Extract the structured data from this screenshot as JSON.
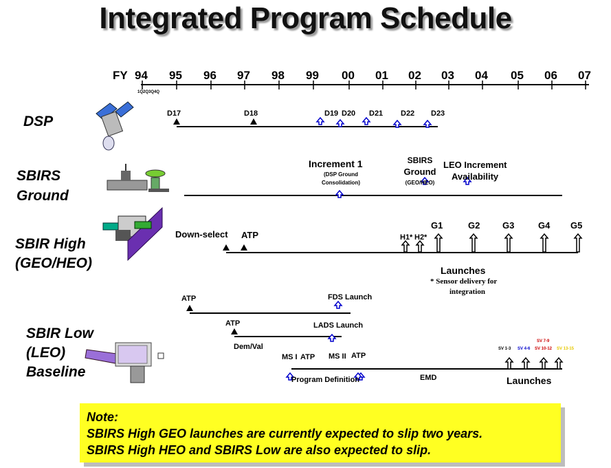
{
  "title": "Integrated Program Schedule",
  "fy_label": "FY",
  "years": [
    "94",
    "95",
    "96",
    "97",
    "98",
    "99",
    "00",
    "01",
    "02",
    "03",
    "04",
    "05",
    "06",
    "07"
  ],
  "quarters": "1Q2Q3Q4Q",
  "rows": {
    "dsp": "DSP",
    "ground_1": "SBIRS",
    "ground_2": "Ground",
    "high_1": "SBIR High",
    "high_2": "(GEO/HEO)",
    "low_1": "SBIR Low",
    "low_2": "(LEO)",
    "low_3": "Baseline"
  },
  "dsp_events": [
    "D17",
    "D18",
    "D19",
    "D20",
    "D21",
    "D22",
    "D23"
  ],
  "ground": {
    "inc1": "Increment  1",
    "inc1_sub1": "(DSP Ground",
    "inc1_sub2": "Consolidation)",
    "sbirs_ground_1": "SBIRS",
    "sbirs_ground_2": "Ground",
    "sbirs_ground_3": "(GEO/HEO)",
    "leo_inc_1": "LEO Increment",
    "leo_inc_2": "Availability"
  },
  "high": {
    "downselect": "Down-select",
    "atp": "ATP",
    "h1": "H1*",
    "h2": "H2*",
    "g": [
      "G1",
      "G2",
      "G3",
      "G4",
      "G5"
    ],
    "launches": "Launches",
    "note_1": "* Sensor delivery for",
    "note_2": "integration"
  },
  "low": {
    "atp1": "ATP",
    "fds": "FDS Launch",
    "atp2": "ATP",
    "lads": "LADS Launch",
    "demval": "Dem/Val",
    "ms1": "MS I",
    "atp3": "ATP",
    "ms2": "MS II",
    "atp4": "ATP",
    "program_def": "Program Definition",
    "emd": "EMD",
    "launches": "Launches",
    "sv": [
      "SV 1-3",
      "SV 4-6",
      "SV 7-9",
      "SV 10-12",
      "SV 13-15"
    ]
  },
  "note": {
    "line1": "Note:",
    "line2": "SBIRS High GEO launches are currently expected to slip two years.",
    "line3": "SBIRS High HEO and SBIRS Low are also expected to slip."
  },
  "colors": {
    "note_bg": "#ffff22",
    "blue_arrow": "#0000cc",
    "sv_blue": "#0000cc",
    "sv_red": "#cc0000",
    "sv_yellow": "#e6c800"
  }
}
